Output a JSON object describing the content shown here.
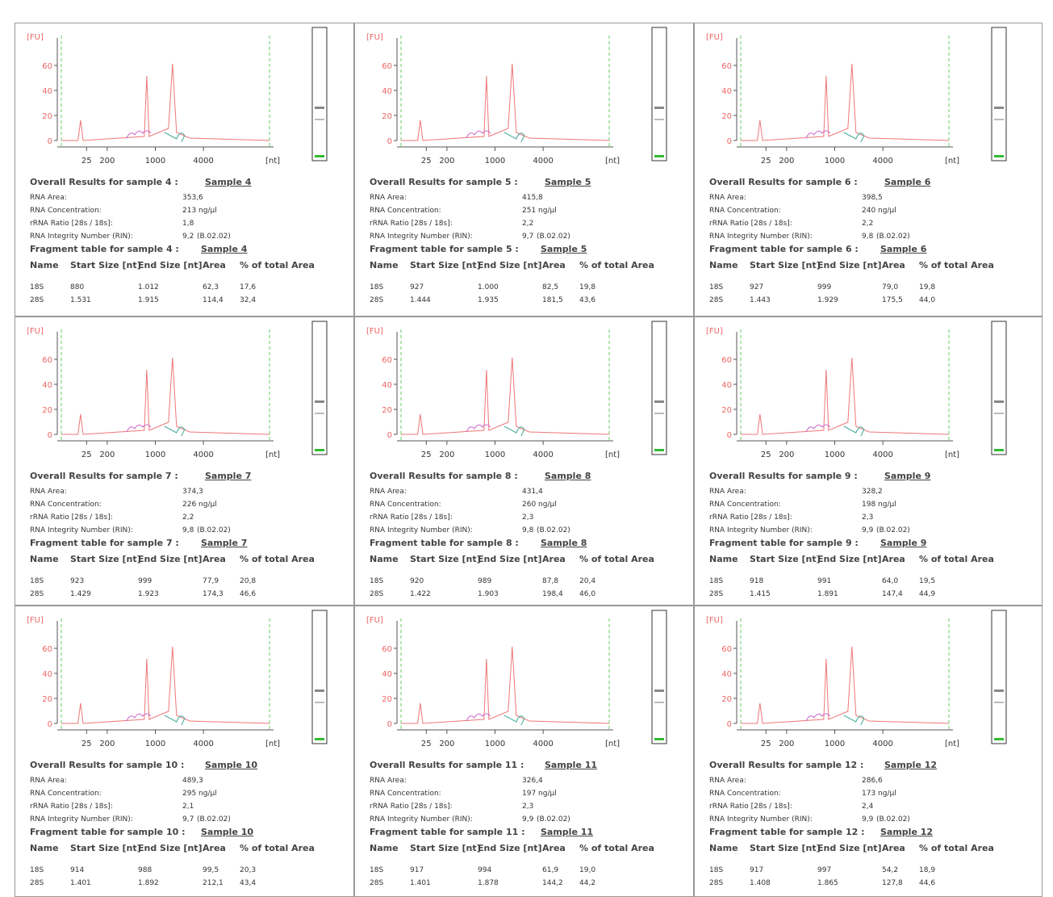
{
  "axis": {
    "y_unit": "[FU]",
    "yticks": [
      0,
      20,
      40,
      60
    ],
    "xticks": [
      "25",
      "200",
      "1000",
      "4000"
    ],
    "x_unit": "[nt]"
  },
  "labels": {
    "rna_area": "RNA Area:",
    "concentration": "RNA Concentration:",
    "ratio": "rRNA Ratio [28s / 18s]:",
    "rin": "RNA Integrity Number (RIN):",
    "columns": [
      "Name",
      "Start Size [nt]",
      "End Size [nt]",
      "Area",
      "% of total Area"
    ]
  },
  "panels": [
    {
      "overall_title": "Overall Results for sample 4 :",
      "sample_link": "Sample 4",
      "rna_area": "353,6",
      "concentration": "213 ng/µl",
      "ratio": "1,8",
      "rin": "9,2",
      "rin_version": "(B.02.02)",
      "fragment_title": "Fragment table for sample 4 :",
      "fragment_link": "Sample 4",
      "rows": [
        [
          "18S",
          "880",
          "1.012",
          "62,3",
          "17,6"
        ],
        [
          "28S",
          "1.531",
          "1.915",
          "114,4",
          "32,4"
        ]
      ]
    },
    {
      "overall_title": "Overall Results for sample 5 :",
      "sample_link": "Sample 5",
      "rna_area": "415,8",
      "concentration": "251 ng/µl",
      "ratio": "2,2",
      "rin": "9,7",
      "rin_version": "(B.02.02)",
      "fragment_title": "Fragment table for sample 5 :",
      "fragment_link": "Sample 5",
      "rows": [
        [
          "18S",
          "927",
          "1.000",
          "82,5",
          "19,8"
        ],
        [
          "28S",
          "1.444",
          "1.935",
          "181,5",
          "43,6"
        ]
      ]
    },
    {
      "overall_title": "Overall Results for sample 6 :",
      "sample_link": "Sample 6",
      "rna_area": "398,5",
      "concentration": "240 ng/µl",
      "ratio": "2,2",
      "rin": "9,8",
      "rin_version": "(B.02.02)",
      "fragment_title": "Fragment table for sample 6 :",
      "fragment_link": "Sample 6",
      "rows": [
        [
          "18S",
          "927",
          "999",
          "79,0",
          "19,8"
        ],
        [
          "28S",
          "1.443",
          "1.929",
          "175,5",
          "44,0"
        ]
      ]
    },
    {
      "overall_title": "Overall Results for sample 7 :",
      "sample_link": "Sample 7",
      "rna_area": "374,3",
      "concentration": "226 ng/µl",
      "ratio": "2,2",
      "rin": "9,8",
      "rin_version": "(B.02.02)",
      "fragment_title": "Fragment table for sample 7 :",
      "fragment_link": "Sample 7",
      "rows": [
        [
          "18S",
          "923",
          "999",
          "77,9",
          "20,8"
        ],
        [
          "28S",
          "1.429",
          "1.923",
          "174,3",
          "46,6"
        ]
      ]
    },
    {
      "overall_title": "Overall Results for sample 8 :",
      "sample_link": "Sample 8",
      "rna_area": "431,4",
      "concentration": "260 ng/µl",
      "ratio": "2,3",
      "rin": "9,8",
      "rin_version": "(B.02.02)",
      "fragment_title": "Fragment table for sample 8 :",
      "fragment_link": "Sample 8",
      "rows": [
        [
          "18S",
          "920",
          "989",
          "87,8",
          "20,4"
        ],
        [
          "28S",
          "1.422",
          "1.903",
          "198,4",
          "46,0"
        ]
      ]
    },
    {
      "overall_title": "Overall Results for sample 9 :",
      "sample_link": "Sample 9",
      "rna_area": "328,2",
      "concentration": "198 ng/µl",
      "ratio": "2,3",
      "rin": "9,9",
      "rin_version": "(B.02.02)",
      "fragment_title": "Fragment table for sample 9 :",
      "fragment_link": "Sample 9",
      "rows": [
        [
          "18S",
          "918",
          "991",
          "64,0",
          "19,5"
        ],
        [
          "28S",
          "1.415",
          "1.891",
          "147,4",
          "44,9"
        ]
      ]
    },
    {
      "overall_title": "Overall Results for sample 10 :",
      "sample_link": "Sample 10",
      "rna_area": "489,3",
      "concentration": "295 ng/µl",
      "ratio": "2,1",
      "rin": "9,7",
      "rin_version": "(B.02.02)",
      "fragment_title": "Fragment table for sample 10 :",
      "fragment_link": "Sample 10",
      "rows": [
        [
          "18S",
          "914",
          "988",
          "99,5",
          "20,3"
        ],
        [
          "28S",
          "1.401",
          "1.892",
          "212,1",
          "43,4"
        ]
      ]
    },
    {
      "overall_title": "Overall Results for sample 11 :",
      "sample_link": "Sample 11",
      "rna_area": "326,4",
      "concentration": "197 ng/µl",
      "ratio": "2,3",
      "rin": "9,9",
      "rin_version": "(B.02.02)",
      "fragment_title": "Fragment table for sample 11 :",
      "fragment_link": "Sample 11",
      "rows": [
        [
          "18S",
          "917",
          "994",
          "61,9",
          "19,0"
        ],
        [
          "28S",
          "1.401",
          "1.878",
          "144,2",
          "44,2"
        ]
      ]
    },
    {
      "overall_title": "Overall Results for sample 12 :",
      "sample_link": "Sample 12",
      "rna_area": "286,6",
      "concentration": "173 ng/µl",
      "ratio": "2,4",
      "rin": "9,9",
      "rin_version": "(B.02.02)",
      "fragment_title": "Fragment table for sample 12 :",
      "fragment_link": "Sample 12",
      "rows": [
        [
          "18S",
          "917",
          "997",
          "54,2",
          "18,9"
        ],
        [
          "28S",
          "1.408",
          "1.865",
          "127,8",
          "44,6"
        ]
      ]
    }
  ]
}
